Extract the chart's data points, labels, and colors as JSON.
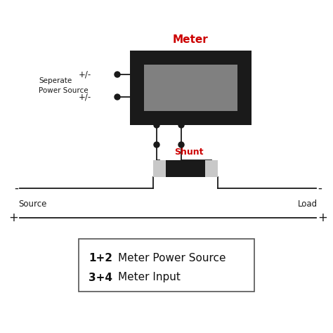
{
  "bg_color": "#ffffff",
  "meter_label": "Meter",
  "meter_label_color": "#cc0000",
  "shunt_label": "Shunt",
  "shunt_label_color": "#cc0000",
  "source_label": "Source",
  "load_label": "Load",
  "separate_power_label": "Seperate\nPower Source",
  "plus_minus_1": "+/-",
  "plus_minus_2": "+/-",
  "legend_line1_bold": "1+2",
  "legend_line1_normal": "Meter Power Source",
  "legend_line2_bold": "3+4",
  "legend_line2_normal": "Meter Input",
  "minus_sign": "-",
  "plus_sign": "+",
  "wire_color": "#1a1a1a",
  "meter_box_color": "#1a1a1a",
  "meter_screen_color": "#808080",
  "shunt_body_color": "#1a1a1a",
  "shunt_terminal_color": "#c8c8c8",
  "text_color": "#222222"
}
